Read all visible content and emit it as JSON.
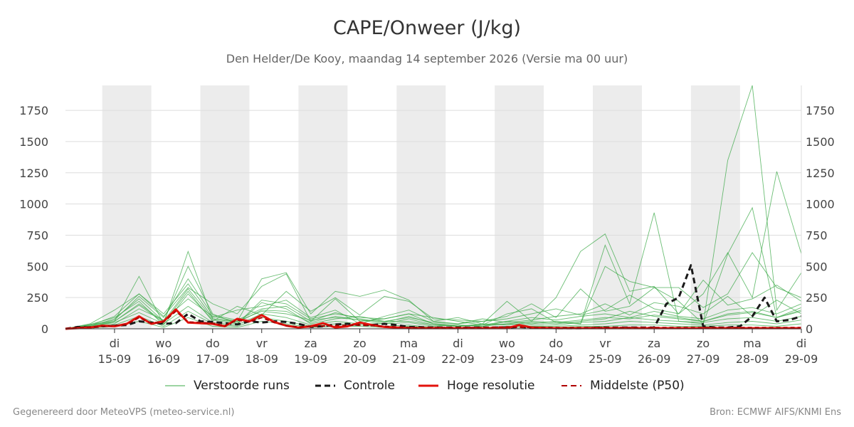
{
  "header": {
    "title": "CAPE/Onweer (J/kg)",
    "subtitle": "Den Helder/De Kooy, maandag 14 september 2026 (Versie ma 00 uur)"
  },
  "footer": {
    "left": "Gegenereerd door MeteoVPS (meteo-service.nl)",
    "right": "Bron: ECMWF AIFS/KNMI Ens"
  },
  "colors": {
    "perturbed": "#3aa845",
    "control": "#1a1a1a",
    "hires": "#e3120b",
    "p50": "#b00000",
    "night_band": "#ececec",
    "grid": "#dddddd"
  },
  "chart_data": {
    "type": "line",
    "ylim": [
      0,
      1950
    ],
    "yticks": [
      0,
      250,
      500,
      750,
      1000,
      1250,
      1500,
      1750
    ],
    "x_unit": "days since 14-09 00:00",
    "xlim": [
      0,
      15
    ],
    "xticks": [
      {
        "x": 1,
        "day": "di",
        "date": "15-09"
      },
      {
        "x": 2,
        "day": "wo",
        "date": "16-09"
      },
      {
        "x": 3,
        "day": "do",
        "date": "17-09"
      },
      {
        "x": 4,
        "day": "vr",
        "date": "18-09"
      },
      {
        "x": 5,
        "day": "za",
        "date": "19-09"
      },
      {
        "x": 6,
        "day": "zo",
        "date": "20-09"
      },
      {
        "x": 7,
        "day": "ma",
        "date": "21-09"
      },
      {
        "x": 8,
        "day": "di",
        "date": "22-09"
      },
      {
        "x": 9,
        "day": "wo",
        "date": "23-09"
      },
      {
        "x": 10,
        "day": "do",
        "date": "24-09"
      },
      {
        "x": 11,
        "day": "vr",
        "date": "25-09"
      },
      {
        "x": 12,
        "day": "za",
        "date": "26-09"
      },
      {
        "x": 13,
        "day": "zo",
        "date": "27-09"
      },
      {
        "x": 14,
        "day": "ma",
        "date": "28-09"
      },
      {
        "x": 15,
        "day": "di",
        "date": "29-09"
      }
    ],
    "shaded_bands": [
      [
        0.75,
        1.75
      ],
      [
        2.75,
        3.75
      ],
      [
        4.75,
        5.75
      ],
      [
        6.75,
        7.75
      ],
      [
        8.75,
        9.75
      ],
      [
        10.75,
        11.75
      ],
      [
        12.75,
        13.75
      ]
    ],
    "legend": [
      {
        "key": "perturbed",
        "label": "Verstoorde runs"
      },
      {
        "key": "control",
        "label": "Controle"
      },
      {
        "key": "hires",
        "label": "Hoge resolutie"
      },
      {
        "key": "p50",
        "label": "Middelste (P50)"
      }
    ],
    "highlight_series": [
      {
        "name": "Controle",
        "key": "control",
        "x": [
          0,
          0.25,
          0.5,
          0.75,
          1,
          1.25,
          1.5,
          1.75,
          2,
          2.25,
          2.5,
          2.75,
          3,
          3.25,
          3.5,
          3.75,
          4,
          4.25,
          4.5,
          4.75,
          5,
          5.25,
          5.5,
          5.75,
          6,
          6.25,
          6.5,
          6.75,
          7,
          7.5,
          8,
          8.5,
          9,
          9.25,
          9.5,
          10,
          10.5,
          11,
          11.5,
          11.75,
          12,
          12.25,
          12.5,
          12.75,
          13,
          13.25,
          13.5,
          13.75,
          14,
          14.25,
          14.5,
          14.75,
          15
        ],
        "y": [
          0,
          15,
          10,
          20,
          25,
          30,
          60,
          50,
          40,
          45,
          120,
          60,
          55,
          45,
          35,
          60,
          50,
          60,
          55,
          40,
          15,
          20,
          35,
          40,
          30,
          30,
          40,
          30,
          15,
          10,
          10,
          10,
          10,
          15,
          10,
          5,
          5,
          10,
          10,
          10,
          10,
          200,
          250,
          510,
          20,
          10,
          10,
          20,
          100,
          250,
          60,
          70,
          100
        ]
      },
      {
        "name": "Hoge resolutie",
        "key": "hires",
        "x": [
          0,
          0.25,
          0.5,
          0.75,
          1,
          1.25,
          1.5,
          1.75,
          2,
          2.25,
          2.5,
          2.75,
          3,
          3.25,
          3.5,
          3.75,
          4,
          4.25,
          4.5,
          4.75,
          5,
          5.25,
          5.5,
          5.75,
          6,
          6.25,
          6.5,
          6.75,
          7,
          7.5,
          8,
          8.5,
          9,
          9.25,
          9.5,
          10,
          10.5,
          11,
          11.5,
          12,
          12.5,
          13,
          13.5,
          14,
          14.5,
          15
        ],
        "y": [
          0,
          5,
          10,
          25,
          20,
          40,
          100,
          40,
          60,
          155,
          50,
          45,
          40,
          20,
          80,
          60,
          110,
          55,
          25,
          10,
          20,
          45,
          10,
          20,
          50,
          30,
          15,
          10,
          5,
          5,
          5,
          5,
          5,
          30,
          10,
          5,
          5,
          5,
          5,
          5,
          5,
          5,
          5,
          5,
          5,
          5
        ]
      },
      {
        "name": "Middelste (P50)",
        "key": "p50",
        "x": [
          0,
          0.25,
          0.5,
          0.75,
          1,
          1.25,
          1.5,
          1.75,
          2,
          2.25,
          2.5,
          2.75,
          3,
          3.25,
          3.5,
          3.75,
          4,
          4.25,
          4.5,
          4.75,
          5,
          5.5,
          6,
          6.5,
          7,
          7.5,
          8,
          8.5,
          9,
          9.5,
          10,
          10.5,
          11,
          11.5,
          12,
          12.5,
          13,
          13.5,
          14,
          14.5,
          15
        ],
        "y": [
          0,
          10,
          15,
          20,
          25,
          35,
          90,
          45,
          55,
          140,
          55,
          50,
          45,
          25,
          70,
          55,
          90,
          50,
          25,
          15,
          20,
          25,
          30,
          20,
          10,
          10,
          10,
          10,
          15,
          10,
          10,
          10,
          10,
          10,
          10,
          10,
          10,
          10,
          10,
          10,
          10
        ]
      }
    ],
    "perturbed_runs": [
      {
        "x": [
          0,
          0.5,
          1,
          1.5,
          2,
          2.5,
          3,
          3.5,
          4,
          4.5,
          5,
          5.5,
          6,
          6.5,
          7,
          7.5,
          8,
          8.5,
          9,
          9.5,
          10,
          10.5,
          11,
          11.5,
          12,
          12.5,
          13,
          13.5,
          14,
          14.5,
          15
        ],
        "y": [
          0,
          30,
          60,
          420,
          40,
          620,
          80,
          60,
          400,
          450,
          120,
          300,
          260,
          310,
          230,
          60,
          90,
          40,
          220,
          60,
          250,
          620,
          760,
          300,
          340,
          120,
          280,
          610,
          250,
          1260,
          600
        ]
      },
      {
        "x": [
          0,
          0.5,
          1,
          1.5,
          2,
          2.5,
          3,
          3.5,
          4,
          4.5,
          5,
          5.5,
          6,
          6.5,
          7,
          7.5,
          8,
          8.5,
          9,
          9.5,
          10,
          10.5,
          11,
          11.5,
          12,
          12.5,
          13,
          13.5,
          14,
          14.5,
          15
        ],
        "y": [
          0,
          20,
          80,
          240,
          60,
          500,
          120,
          40,
          230,
          200,
          80,
          120,
          90,
          80,
          120,
          40,
          30,
          20,
          60,
          40,
          60,
          40,
          670,
          200,
          930,
          60,
          40,
          1350,
          1950,
          150,
          450
        ]
      },
      {
        "x": [
          0,
          0.5,
          1,
          1.5,
          2,
          2.5,
          3,
          3.5,
          4,
          4.5,
          5,
          5.5,
          6,
          6.5,
          7,
          7.5,
          8,
          8.5,
          9,
          9.5,
          10,
          10.5,
          11,
          11.5,
          12,
          12.5,
          13,
          13.5,
          14,
          14.5,
          15
        ],
        "y": [
          0,
          40,
          150,
          280,
          100,
          330,
          200,
          120,
          340,
          440,
          60,
          240,
          60,
          80,
          120,
          90,
          60,
          30,
          120,
          160,
          50,
          40,
          500,
          380,
          330,
          220,
          40,
          600,
          970,
          90,
          140
        ]
      },
      {
        "x": [
          0,
          0.5,
          1,
          1.5,
          2,
          2.5,
          3,
          3.5,
          4,
          4.5,
          5,
          5.5,
          6,
          6.5,
          7,
          7.5,
          8,
          8.5,
          9,
          9.5,
          10,
          10.5,
          11,
          11.5,
          12,
          12.5,
          13,
          13.5,
          14,
          14.5,
          15
        ],
        "y": [
          0,
          10,
          60,
          190,
          50,
          300,
          60,
          180,
          110,
          300,
          140,
          250,
          110,
          260,
          220,
          80,
          70,
          60,
          100,
          200,
          90,
          320,
          140,
          180,
          330,
          330,
          170,
          280,
          610,
          330,
          250
        ]
      },
      {
        "x": [
          0,
          0.5,
          1,
          1.5,
          2,
          2.5,
          3,
          3.5,
          4,
          4.5,
          5,
          5.5,
          6,
          6.5,
          7,
          7.5,
          8,
          8.5,
          9,
          9.5,
          10,
          10.5,
          11,
          11.5,
          12,
          12.5,
          13,
          13.5,
          14,
          14.5,
          15
        ],
        "y": [
          0,
          25,
          100,
          280,
          120,
          360,
          90,
          150,
          180,
          230,
          90,
          150,
          40,
          100,
          150,
          60,
          40,
          60,
          80,
          120,
          160,
          110,
          150,
          270,
          160,
          120,
          390,
          190,
          240,
          350,
          220
        ]
      },
      {
        "x": [
          0,
          0.5,
          1,
          1.5,
          2,
          2.5,
          3,
          3.5,
          4,
          4.5,
          5,
          5.5,
          6,
          6.5,
          7,
          7.5,
          8,
          8.5,
          9,
          9.5,
          10,
          10.5,
          11,
          11.5,
          12,
          12.5,
          13,
          13.5,
          14,
          14.5,
          15
        ],
        "y": [
          0,
          15,
          40,
          160,
          70,
          240,
          100,
          60,
          140,
          120,
          70,
          90,
          70,
          60,
          90,
          50,
          40,
          80,
          50,
          70,
          100,
          120,
          200,
          110,
          210,
          180,
          120,
          260,
          100,
          230,
          120
        ]
      },
      {
        "x": [
          0,
          0.5,
          1,
          1.5,
          2,
          2.5,
          3,
          3.5,
          4,
          4.5,
          5,
          5.5,
          6,
          6.5,
          7,
          7.5,
          8,
          8.5,
          9,
          9.5,
          10,
          10.5,
          11,
          11.5,
          12,
          12.5,
          13,
          13.5,
          14,
          14.5,
          15
        ],
        "y": [
          0,
          35,
          90,
          220,
          30,
          280,
          70,
          40,
          210,
          160,
          40,
          80,
          100,
          60,
          60,
          30,
          20,
          40,
          30,
          50,
          40,
          60,
          80,
          140,
          100,
          80,
          60,
          120,
          140,
          90,
          170
        ]
      },
      {
        "x": [
          0,
          0.5,
          1,
          1.5,
          2,
          2.5,
          3,
          3.5,
          4,
          4.5,
          5,
          5.5,
          6,
          6.5,
          7,
          7.5,
          8,
          8.5,
          9,
          9.5,
          10,
          10.5,
          11,
          11.5,
          12,
          12.5,
          13,
          13.5,
          14,
          14.5,
          15
        ],
        "y": [
          0,
          20,
          50,
          130,
          40,
          180,
          50,
          30,
          120,
          90,
          30,
          60,
          40,
          40,
          50,
          20,
          30,
          20,
          40,
          30,
          30,
          50,
          60,
          90,
          70,
          60,
          50,
          80,
          90,
          60,
          100
        ]
      },
      {
        "x": [
          0,
          0.5,
          1,
          1.5,
          2,
          2.5,
          3,
          3.5,
          4,
          4.5,
          5,
          5.5,
          6,
          6.5,
          7,
          7.5,
          8,
          8.5,
          9,
          9.5,
          10,
          10.5,
          11,
          11.5,
          12,
          12.5,
          13,
          13.5,
          14,
          14.5,
          15
        ],
        "y": [
          0,
          10,
          30,
          100,
          20,
          140,
          40,
          20,
          90,
          60,
          20,
          40,
          30,
          20,
          30,
          10,
          10,
          10,
          20,
          20,
          20,
          30,
          40,
          60,
          50,
          40,
          30,
          50,
          60,
          40,
          70
        ]
      },
      {
        "x": [
          0,
          0.5,
          1,
          1.5,
          2,
          2.5,
          3,
          3.5,
          4,
          4.5,
          5,
          5.5,
          6,
          6.5,
          7,
          7.5,
          8,
          8.5,
          9,
          9.5,
          10,
          10.5,
          11,
          11.5,
          12,
          12.5,
          13,
          13.5,
          14,
          14.5,
          15
        ],
        "y": [
          0,
          30,
          70,
          260,
          90,
          400,
          110,
          70,
          160,
          180,
          60,
          130,
          80,
          50,
          100,
          40,
          20,
          30,
          60,
          90,
          70,
          100,
          120,
          90,
          140,
          100,
          80,
          150,
          170,
          120,
          200
        ]
      },
      {
        "x": [
          0,
          0.5,
          1,
          1.5,
          2,
          2.5,
          3,
          3.5,
          4,
          4.5,
          5,
          5.5,
          6,
          6.5,
          7,
          7.5,
          8,
          8.5,
          9,
          9.5,
          10,
          10.5,
          11,
          11.5,
          12,
          12.5,
          13,
          13.5,
          14,
          14.5,
          15
        ],
        "y": [
          0,
          5,
          20,
          60,
          10,
          90,
          20,
          10,
          60,
          40,
          10,
          20,
          20,
          10,
          20,
          10,
          5,
          10,
          10,
          10,
          10,
          20,
          20,
          30,
          30,
          20,
          20,
          30,
          30,
          20,
          40
        ]
      },
      {
        "x": [
          0,
          0.5,
          1,
          1.5,
          2,
          2.5,
          3,
          3.5,
          4,
          4.5,
          5,
          5.5,
          6,
          6.5,
          7,
          7.5,
          8,
          8.5,
          9,
          9.5,
          10,
          10.5,
          11,
          11.5,
          12,
          12.5,
          13,
          13.5,
          14,
          14.5,
          15
        ],
        "y": [
          0,
          20,
          60,
          200,
          60,
          320,
          80,
          50,
          150,
          140,
          50,
          100,
          70,
          40,
          80,
          30,
          20,
          30,
          40,
          60,
          50,
          70,
          90,
          80,
          110,
          90,
          60,
          110,
          130,
          90,
          150
        ]
      }
    ]
  }
}
